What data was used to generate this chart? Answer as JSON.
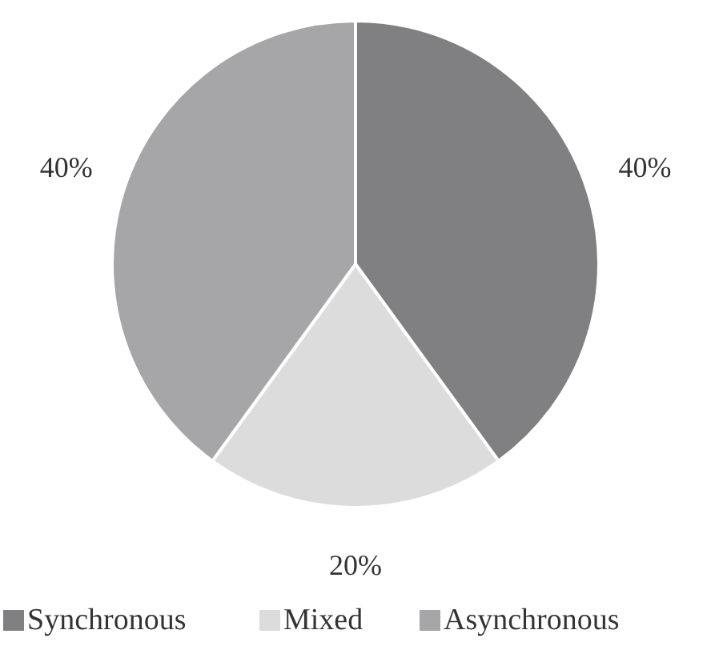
{
  "chart_data": {
    "type": "pie",
    "categories": [
      "Synchronous",
      "Mixed",
      "Asynchronous"
    ],
    "values": [
      40,
      20,
      40
    ],
    "colors": [
      "#808083",
      "#dcdcdd",
      "#a6a6a8"
    ],
    "value_labels": [
      "40%",
      "20%",
      "40%"
    ],
    "legend": "bottom"
  }
}
